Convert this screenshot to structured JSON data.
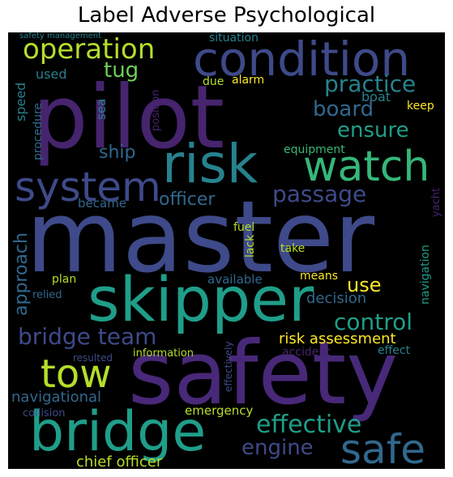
{
  "title": "Label Adverse Psychological",
  "words": {
    "master": "master",
    "pilot": "pilot",
    "safety": "safety",
    "skipper": "skipper",
    "bridge": "bridge",
    "condition": "condition",
    "risk": "risk",
    "watch": "watch",
    "system": "system",
    "safe": "safe",
    "tow": "tow",
    "operation": "operation",
    "practice": "practice",
    "board": "board",
    "ensure": "ensure",
    "passage": "passage",
    "bridge_team": "bridge team",
    "control": "control",
    "effective": "effective",
    "engine": "engine",
    "tug": "tug",
    "ship": "ship",
    "officer": "officer",
    "approach": "approach",
    "use": "use",
    "navigational": "navigational",
    "chief_officer": "chief officer",
    "risk_assessment": "risk assessment",
    "decision": "decision",
    "situation": "situation",
    "safety_management": "safety management",
    "used": "used",
    "boat": "boat",
    "alarm": "alarm",
    "due": "due",
    "keep": "keep",
    "speed": "speed",
    "sea": "sea",
    "position": "position",
    "procedure": "procedure",
    "equipment": "equipment",
    "became": "became",
    "yacht": "yacht",
    "fuel": "fuel",
    "lack": "lack",
    "take": "take",
    "navigation": "navigation",
    "plan": "plan",
    "relied": "relied",
    "available": "available",
    "means": "means",
    "effect": "effect",
    "accident": "accident",
    "information": "information",
    "resulted": "resulted",
    "effectively": "effectively",
    "collision": "collision",
    "emergency": "emergency"
  },
  "colors": {
    "background": "#000000",
    "purple_dark": "#46246e",
    "purple": "#482878",
    "indigo": "#3e4a89",
    "blue": "#31688e",
    "teal": "#26828e",
    "teal_green": "#1f9e89",
    "green": "#35b779",
    "lime": "#6ece58",
    "yellow_green": "#b5de2b",
    "yellow": "#fde725"
  }
}
